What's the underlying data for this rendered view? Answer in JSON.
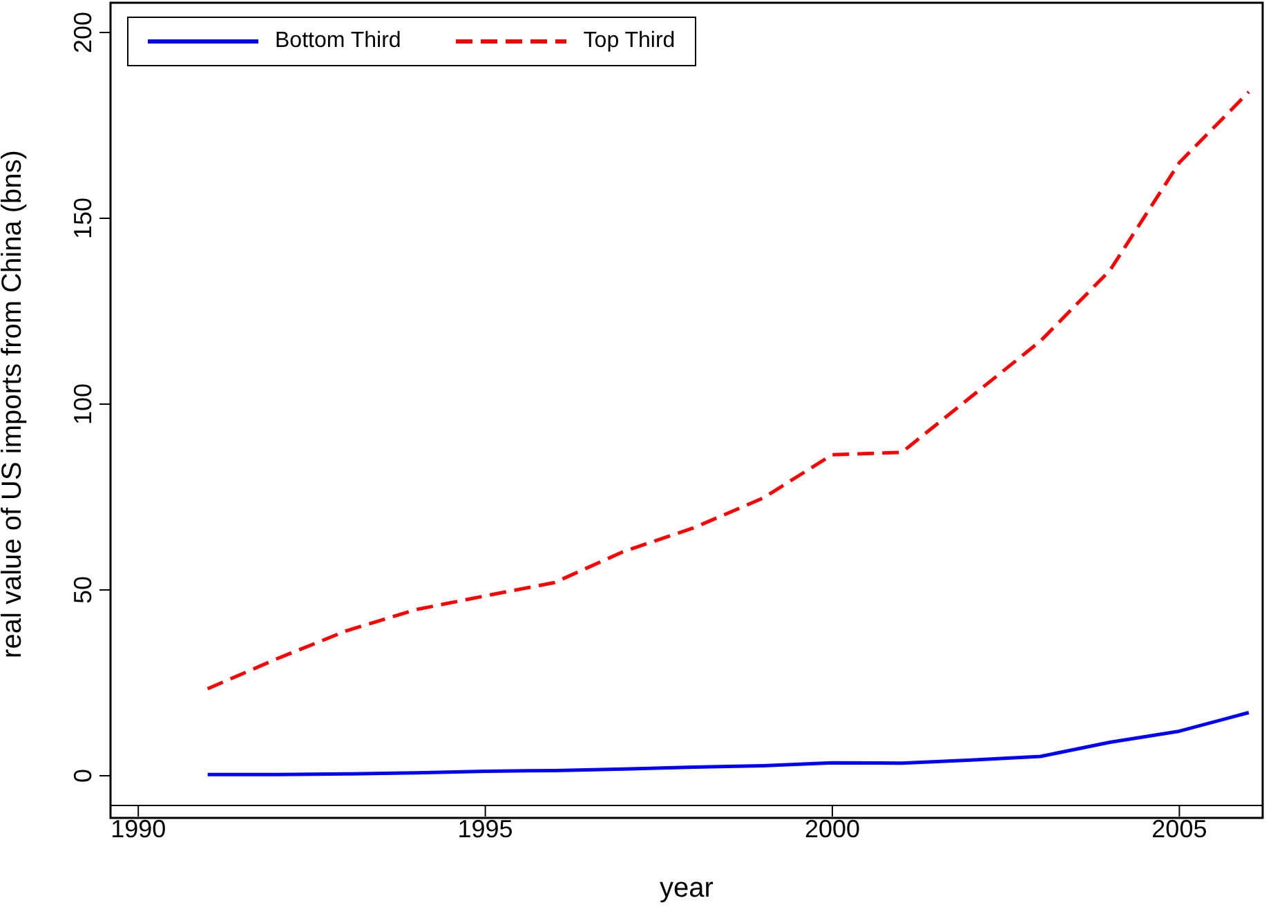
{
  "chart_data": {
    "type": "line",
    "xlabel": "year",
    "ylabel": "real value of US imports from China (bns)",
    "x": [
      1991,
      1992,
      1993,
      1994,
      1995,
      1996,
      1997,
      1998,
      1999,
      2000,
      2001,
      2002,
      2003,
      2004,
      2005,
      2006
    ],
    "series": [
      {
        "name": "Bottom Third",
        "color": "#0000ff",
        "line_style": "solid",
        "values": [
          0.3,
          0.3,
          0.5,
          0.8,
          1.2,
          1.4,
          1.8,
          2.3,
          2.7,
          3.5,
          3.4,
          4.2,
          5.2,
          9,
          12,
          17
        ]
      },
      {
        "name": "Top Third",
        "color": "#ff0000",
        "line_style": "dashed",
        "values": [
          23.4,
          31.5,
          39,
          44.7,
          48.4,
          52,
          60.4,
          66.7,
          74.7,
          86.4,
          87,
          102,
          117,
          136,
          165,
          184
        ]
      }
    ],
    "xlim": [
      1989.6,
      2006.2
    ],
    "ylim": [
      -8,
      208
    ],
    "xticks": [
      1990,
      1995,
      2000,
      2005
    ],
    "yticks": [
      0,
      50,
      100,
      150,
      200
    ],
    "grid": false,
    "legend": "top left",
    "marker": "none"
  }
}
